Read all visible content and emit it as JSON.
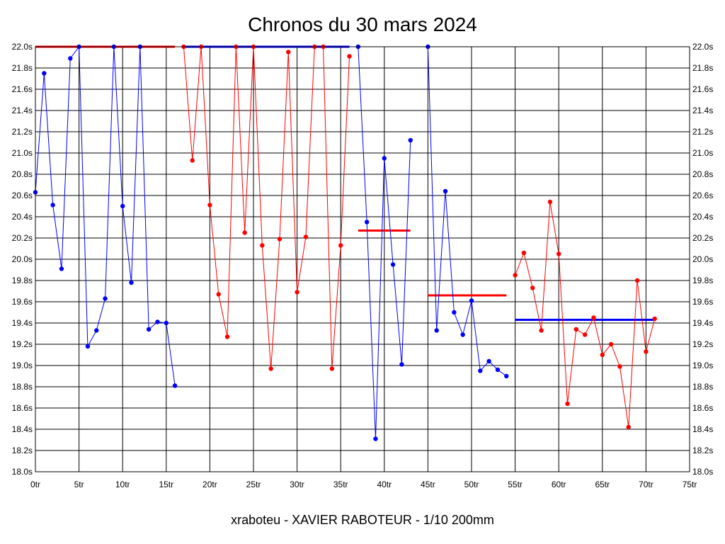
{
  "chart_data": {
    "type": "line",
    "title": "Chronos du 30 mars 2024",
    "subtitle": "xraboteu - XAVIER RABOTEUR - 1/10 200mm",
    "x_range": [
      0,
      75
    ],
    "y_range": [
      18.0,
      22.0
    ],
    "x_ticks": [
      0,
      5,
      10,
      15,
      20,
      25,
      30,
      35,
      40,
      45,
      50,
      55,
      60,
      65,
      70,
      75
    ],
    "x_tick_suffix": "tr",
    "y_ticks": [
      18.0,
      18.2,
      18.4,
      18.6,
      18.8,
      19.0,
      19.2,
      19.4,
      19.6,
      19.8,
      20.0,
      20.2,
      20.4,
      20.6,
      20.8,
      21.0,
      21.2,
      21.4,
      21.6,
      21.8,
      22.0
    ],
    "y_tick_suffix": "s",
    "grid": true,
    "colors": {
      "blue": "#0000ff",
      "red": "#ff0000",
      "grid": "#000000"
    },
    "series": [
      {
        "color": "blue",
        "x": [
          0,
          1,
          2,
          3,
          4,
          5,
          6,
          7,
          8,
          9,
          10,
          11,
          12,
          13,
          14,
          15,
          16
        ],
        "y": [
          20.63,
          21.75,
          20.51,
          19.91,
          21.89,
          22.0,
          19.18,
          19.33,
          19.63,
          22.0,
          20.5,
          19.78,
          22.0,
          19.34,
          19.41,
          19.4,
          18.81
        ]
      },
      {
        "color": "red",
        "x": [
          17,
          18,
          19,
          20,
          21,
          22,
          23,
          24,
          25,
          26,
          27,
          28,
          29,
          30,
          31,
          32,
          33,
          34,
          35,
          36
        ],
        "y": [
          22.0,
          20.93,
          22.0,
          20.51,
          19.67,
          19.27,
          22.0,
          20.25,
          22.0,
          20.13,
          18.97,
          20.19,
          21.95,
          19.69,
          20.21,
          22.0,
          22.0,
          18.97,
          20.13,
          21.91
        ]
      },
      {
        "color": "blue",
        "x": [
          37,
          38,
          39,
          40,
          41,
          42,
          43
        ],
        "y": [
          22.0,
          20.35,
          18.31,
          20.95,
          19.95,
          19.01,
          21.12
        ]
      },
      {
        "color": "blue",
        "x": [
          45,
          46,
          47,
          48,
          49,
          50,
          51,
          52,
          53,
          54
        ],
        "y": [
          22.0,
          19.33,
          20.64,
          19.5,
          19.29,
          19.61,
          18.95,
          19.04,
          18.96,
          18.9
        ]
      },
      {
        "color": "red",
        "x": [
          55,
          56,
          57,
          58,
          59,
          60,
          61,
          62,
          63,
          64,
          65,
          66,
          67,
          68,
          69,
          70,
          71
        ],
        "y": [
          19.85,
          20.06,
          19.73,
          19.33,
          20.54,
          20.05,
          18.64,
          19.34,
          19.29,
          19.45,
          19.1,
          19.2,
          18.99,
          18.42,
          19.8,
          19.13,
          19.44
        ]
      }
    ],
    "reference_lines": [
      {
        "color": "red",
        "x1": 0,
        "x2": 16,
        "y": 22.0
      },
      {
        "color": "blue",
        "x1": 17,
        "x2": 36,
        "y": 22.0
      },
      {
        "color": "red",
        "x1": 37,
        "x2": 43,
        "y": 20.27
      },
      {
        "color": "red",
        "x1": 45,
        "x2": 54,
        "y": 19.66
      },
      {
        "color": "blue",
        "x1": 55,
        "x2": 71,
        "y": 19.43
      }
    ]
  }
}
